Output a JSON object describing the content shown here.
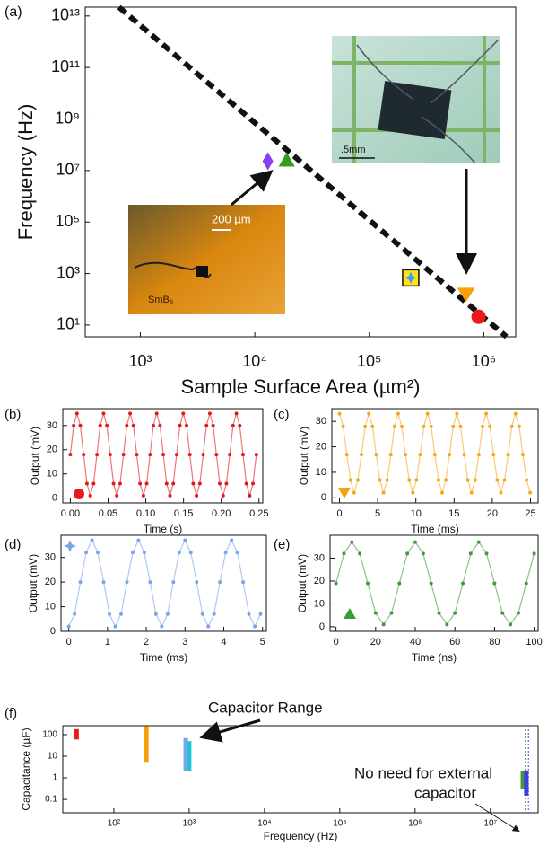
{
  "chart_data": [
    {
      "type": "scatter",
      "panel_label": "(a)",
      "x_label": "Sample Surface Area (µm²)",
      "y_label": "Frequency (Hz)",
      "xlog": true,
      "ylog": true,
      "xlim": [
        330,
        1900000
      ],
      "ylim": [
        3.5,
        22000000000000
      ],
      "xticks": [
        {
          "value": 1000,
          "label": "10³"
        },
        {
          "value": 10000,
          "label": "10⁴"
        },
        {
          "value": 100000,
          "label": "10⁵"
        },
        {
          "value": 1000000,
          "label": "10⁶"
        }
      ],
      "yticks": [
        {
          "value": 10,
          "label": "10¹"
        },
        {
          "value": 1000,
          "label": "10³"
        },
        {
          "value": 100000,
          "label": "10⁵"
        },
        {
          "value": 10000000,
          "label": "10⁷"
        },
        {
          "value": 1000000000,
          "label": "10⁹"
        },
        {
          "value": 100000000000,
          "label": "10¹¹"
        },
        {
          "value": 10000000000000,
          "label": "10¹³"
        }
      ],
      "trend_line": {
        "x": [
          650,
          1580000
        ],
        "y": [
          22000000000000,
          3.5
        ]
      },
      "series": [
        {
          "marker": "diamond",
          "color": "#8b3ff0",
          "x": [
            13000
          ],
          "values": [
            23000000
          ]
        },
        {
          "marker": "triangle-up",
          "color": "#3a9a1e",
          "x": [
            19000
          ],
          "values": [
            25000000
          ]
        },
        {
          "marker": "square-star",
          "color": "#3aa0ff",
          "x": [
            230000
          ],
          "values": [
            680
          ]
        },
        {
          "marker": "triangle-down",
          "color": "#f5a10a",
          "x": [
            700000
          ],
          "values": [
            160
          ]
        },
        {
          "marker": "circle",
          "color": "#e61c1c",
          "x": [
            900000
          ],
          "values": [
            21
          ]
        }
      ],
      "annotations": [
        "200 µm",
        "SmB₆",
        ".5mm"
      ]
    },
    {
      "type": "scatter",
      "panel_label": "(b)",
      "x_label": "Time (s)",
      "y_label": "Output (mV)",
      "xlim": [
        -0.01,
        0.255
      ],
      "ylim": [
        -2,
        37
      ],
      "xticks": [
        {
          "value": 0,
          "label": "0.00"
        },
        0.05,
        {
          "value": 0.1,
          "label": "0.10"
        },
        0.15,
        {
          "value": 0.2,
          "label": "0.20"
        },
        0.25
      ],
      "yticks": [
        0,
        10,
        20,
        30
      ],
      "x": [
        0,
        0.0044,
        0.0088,
        0.0132,
        0.0176,
        0.022,
        0.0264,
        0.0308,
        0.0352,
        0.0396,
        0.044,
        0.0484,
        0.0528,
        0.0572,
        0.0616,
        0.066,
        0.0704,
        0.0748,
        0.0792,
        0.0836,
        0.088,
        0.0924,
        0.0968,
        0.1012,
        0.1056,
        0.11,
        0.1144,
        0.1188,
        0.1232,
        0.1276,
        0.132,
        0.1364,
        0.1408,
        0.1452,
        0.1496,
        0.154,
        0.1584,
        0.1628,
        0.1672,
        0.1716,
        0.176,
        0.1804,
        0.1848,
        0.1892,
        0.1936,
        0.198,
        0.2024,
        0.2068,
        0.2112,
        0.2156,
        0.22,
        0.2244,
        0.2288,
        0.2332,
        0.2376,
        0.242,
        0.2464
      ],
      "series": [
        {
          "color": "#e01b1b",
          "values": [
            18,
            30,
            35,
            30,
            18,
            6,
            1,
            6,
            18,
            30,
            35,
            30,
            18,
            6,
            1,
            6,
            18,
            30,
            35,
            30,
            18,
            6,
            1,
            6,
            18,
            30,
            35,
            30,
            18,
            6,
            1,
            6,
            18,
            30,
            35,
            30,
            18,
            6,
            1,
            6,
            18,
            30,
            35,
            30,
            18,
            6,
            1,
            6,
            18,
            30,
            35,
            30,
            18,
            6,
            1,
            6,
            18
          ]
        }
      ]
    },
    {
      "type": "scatter",
      "panel_label": "(c)",
      "x_label": "Time (ms)",
      "y_label": "Output (mV)",
      "xlim": [
        -1,
        26
      ],
      "ylim": [
        -2,
        35
      ],
      "xticks": [
        0,
        5,
        10,
        15,
        20,
        25
      ],
      "yticks": [
        0,
        10,
        20,
        30
      ],
      "x": [
        0,
        0.48,
        0.96,
        1.44,
        1.92,
        2.4,
        2.88,
        3.36,
        3.84,
        4.32,
        4.8,
        5.28,
        5.76,
        6.24,
        6.72,
        7.2,
        7.68,
        8.16,
        8.64,
        9.12,
        9.6,
        10.08,
        10.56,
        11.04,
        11.52,
        12,
        12.48,
        12.96,
        13.44,
        13.92,
        14.4,
        14.88,
        15.36,
        15.84,
        16.32,
        16.8,
        17.28,
        17.76,
        18.24,
        18.72,
        19.2,
        19.68,
        20.16,
        20.64,
        21.12,
        21.6,
        22.08,
        22.56,
        23.04,
        23.52,
        24,
        24.48,
        24.96
      ],
      "series": [
        {
          "color": "#f5a71a",
          "values": [
            33,
            28,
            17,
            7,
            2,
            7,
            17,
            28,
            33,
            28,
            17,
            7,
            2,
            7,
            17,
            28,
            33,
            28,
            17,
            7,
            2,
            7,
            17,
            28,
            33,
            28,
            17,
            7,
            2,
            7,
            17,
            28,
            33,
            28,
            17,
            7,
            2,
            7,
            17,
            28,
            33,
            28,
            17,
            7,
            2,
            7,
            17,
            28,
            33,
            28,
            17,
            7,
            2
          ]
        }
      ]
    },
    {
      "type": "scatter",
      "panel_label": "(d)",
      "x_label": "Time (ms)",
      "y_label": "Output (mV)",
      "xlim": [
        -0.2,
        5.1
      ],
      "ylim": [
        0,
        39
      ],
      "xticks": [
        0,
        1,
        2,
        3,
        4,
        5
      ],
      "yticks": [
        0,
        10,
        20,
        30
      ],
      "x": [
        0,
        0.15,
        0.3,
        0.45,
        0.6,
        0.75,
        0.9,
        1.05,
        1.2,
        1.35,
        1.5,
        1.65,
        1.8,
        1.95,
        2.1,
        2.25,
        2.4,
        2.55,
        2.7,
        2.85,
        3,
        3.15,
        3.3,
        3.45,
        3.6,
        3.75,
        3.9,
        4.05,
        4.2,
        4.35,
        4.5,
        4.65,
        4.8,
        4.95
      ],
      "series": [
        {
          "color": "#7aa5ea",
          "values": [
            2,
            7,
            20,
            32,
            37,
            32,
            20,
            7,
            2,
            7,
            20,
            32,
            37,
            32,
            20,
            7,
            2,
            7,
            20,
            32,
            37,
            32,
            20,
            7,
            2,
            7,
            20,
            32,
            37,
            32,
            20,
            7,
            2,
            7
          ]
        }
      ]
    },
    {
      "type": "scatter",
      "panel_label": "(e)",
      "x_label": "Time (ns)",
      "y_label": "Output (mV)",
      "xlim": [
        -3,
        102
      ],
      "ylim": [
        -2,
        40
      ],
      "xticks": [
        0,
        20,
        40,
        60,
        80,
        100
      ],
      "yticks": [
        0,
        10,
        20,
        30
      ],
      "x": [
        0,
        4,
        8,
        12,
        16,
        20,
        24,
        28,
        32,
        36,
        40,
        44,
        48,
        52,
        56,
        60,
        64,
        68,
        72,
        76,
        80,
        84,
        88,
        92,
        96,
        100
      ],
      "series": [
        {
          "color": "#3f9a3a",
          "values": [
            19,
            32,
            37,
            32,
            19,
            6,
            1,
            6,
            19,
            32,
            37,
            32,
            19,
            6,
            1,
            6,
            19,
            32,
            37,
            32,
            19,
            6,
            1,
            6,
            19,
            32
          ]
        }
      ]
    },
    {
      "type": "range-bar",
      "panel_label": "(f)",
      "x_label": "Frequency (Hz)",
      "y_label": "Capacitance (µF)",
      "xlog": true,
      "ylog": true,
      "xlim": [
        21,
        43000000
      ],
      "ylim": [
        0.024,
        260
      ],
      "xticks": [
        {
          "value": 100,
          "label": "10²"
        },
        {
          "value": 1000,
          "label": "10³"
        },
        {
          "value": 10000,
          "label": "10⁴"
        },
        {
          "value": 100000,
          "label": "10⁵"
        },
        {
          "value": 1000000,
          "label": "10⁶"
        },
        {
          "value": 10000000,
          "label": "10⁷"
        }
      ],
      "yticks": [
        0.1,
        1,
        10,
        100
      ],
      "bars": [
        {
          "color": "#e61c1c",
          "x": 32,
          "low": 60,
          "high": 180
        },
        {
          "color": "#f5a10a",
          "x": 270,
          "low": 5,
          "high": 250
        },
        {
          "color": "#7aa5ea",
          "x": 900,
          "low": 2,
          "high": 70
        },
        {
          "color": "#1fc4d0",
          "x": 1000,
          "low": 2,
          "high": 50
        },
        {
          "color": "#3f9a3a",
          "x": 27000000,
          "low": 0.3,
          "high": 2
        },
        {
          "color": "#3b3fe0",
          "x": 30000000,
          "low": 0.15,
          "high": 2
        }
      ],
      "reference_lines": [
        29000000,
        32000000
      ],
      "annotations": [
        "Capacitor Range",
        "No need for external",
        "capacitor"
      ]
    }
  ]
}
